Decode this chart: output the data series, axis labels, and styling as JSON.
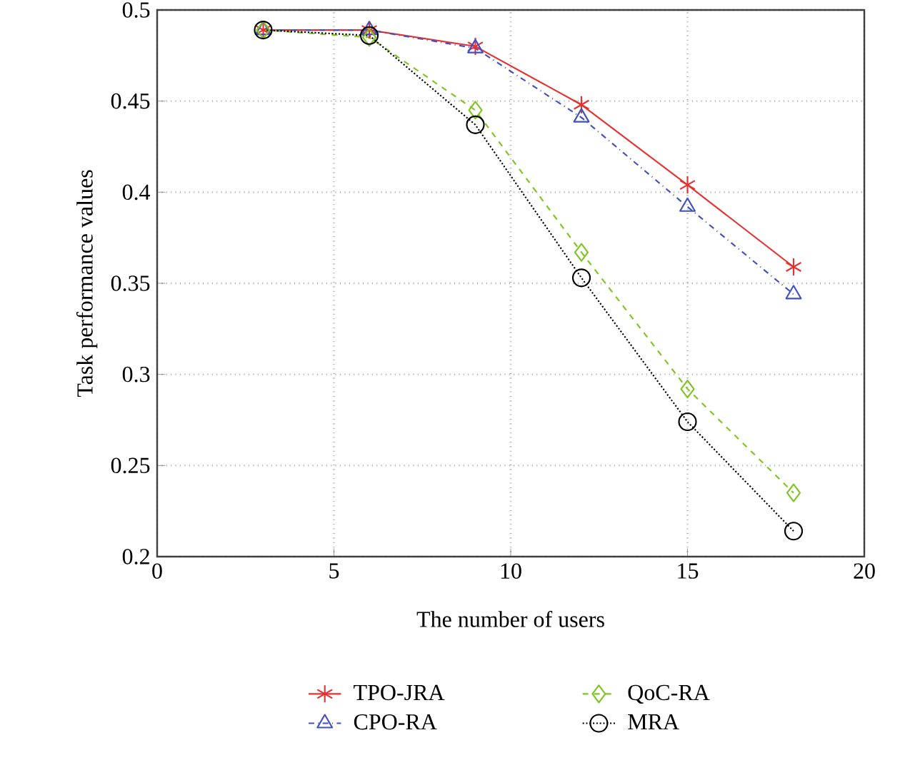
{
  "chart_data": {
    "type": "line",
    "xlabel": "The number of users",
    "ylabel": "Task performance values",
    "x": [
      3,
      6,
      9,
      12,
      15,
      18
    ],
    "series": [
      {
        "name": "TPO-JRA",
        "color": "#e8312f",
        "marker": "cross",
        "line_style": "solid",
        "values": [
          0.489,
          0.489,
          0.48,
          0.448,
          0.404,
          0.359
        ]
      },
      {
        "name": "CPO-RA",
        "color": "#4050c0",
        "marker": "triangle",
        "line_style": "dashdot",
        "values": [
          0.489,
          0.489,
          0.479,
          0.441,
          0.392,
          0.344
        ]
      },
      {
        "name": "QoC-RA",
        "color": "#7dc520",
        "marker": "diamond",
        "line_style": "dashed",
        "values": [
          0.489,
          0.485,
          0.445,
          0.367,
          0.292,
          0.235
        ]
      },
      {
        "name": "MRA",
        "color": "#000000",
        "marker": "circle",
        "line_style": "dotted",
        "values": [
          0.489,
          0.486,
          0.437,
          0.353,
          0.274,
          0.214
        ]
      }
    ],
    "xlim": [
      0,
      20
    ],
    "ylim": [
      0.2,
      0.5
    ],
    "xticks": [
      0,
      5,
      10,
      15,
      20
    ],
    "yticks": [
      0.2,
      0.25,
      0.3,
      0.35,
      0.4,
      0.45,
      0.5
    ],
    "grid": true,
    "legend": "bottom"
  }
}
